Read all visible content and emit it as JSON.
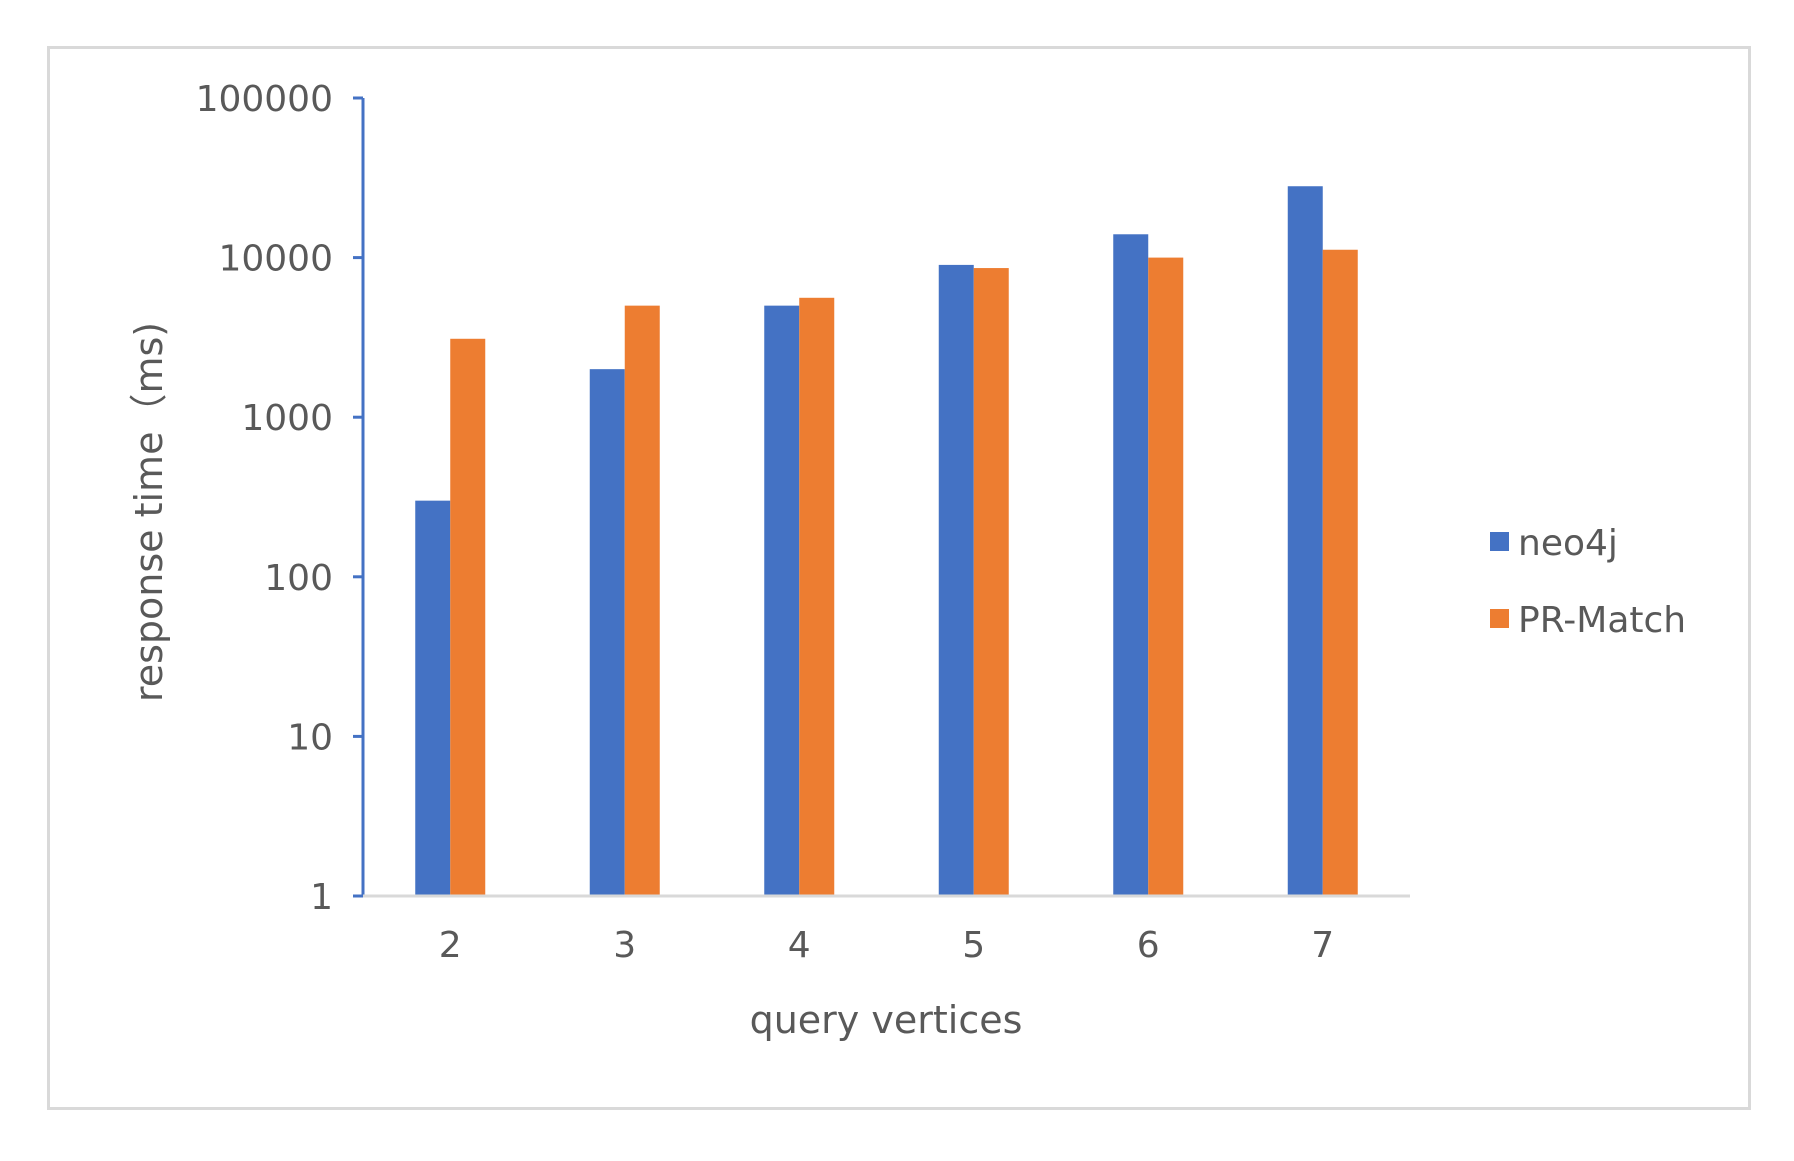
{
  "chart_data": {
    "type": "bar",
    "title": "",
    "xlabel": "query vertices",
    "ylabel": "response time（ms)",
    "categories": [
      "2",
      "3",
      "4",
      "5",
      "6",
      "7"
    ],
    "yscale": "log",
    "ylim": [
      1,
      100000
    ],
    "yticks": [
      1,
      10,
      100,
      1000,
      10000,
      100000
    ],
    "ytick_labels": [
      "1",
      "10",
      "100",
      "1000",
      "10000",
      "100000"
    ],
    "grid": false,
    "legend_position": "right",
    "series": [
      {
        "name": "neo4j",
        "color": "#4472c4",
        "values": [
          300,
          2000,
          5000,
          9000,
          14000,
          28000
        ]
      },
      {
        "name": "PR-Match",
        "color": "#ed7d31",
        "values": [
          3100,
          5000,
          5600,
          8600,
          10000,
          11200
        ]
      }
    ]
  }
}
